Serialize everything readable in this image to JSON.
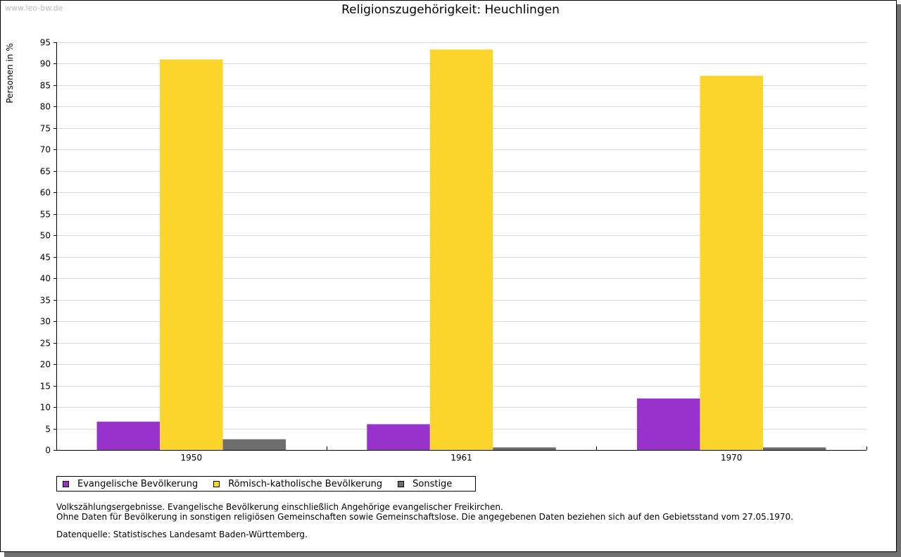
{
  "header": {
    "source_link": "www.leo-bw.de"
  },
  "chart_data": {
    "type": "bar",
    "title": "Religionszugehörigkeit: Heuchlingen",
    "ylabel": "Personen in %",
    "xlabel": "",
    "categories": [
      "1950",
      "1961",
      "1970"
    ],
    "ylim": [
      0,
      95
    ],
    "yticks": [
      0,
      5,
      10,
      15,
      20,
      25,
      30,
      35,
      40,
      45,
      50,
      55,
      60,
      65,
      70,
      75,
      80,
      85,
      90,
      95
    ],
    "grid": true,
    "legend_position": "bottom-left",
    "series": [
      {
        "name": "Evangelische Bevölkerung",
        "color": "#9932cc",
        "values": [
          6.6,
          6.0,
          12.0
        ]
      },
      {
        "name": "Römisch-katholische Bevölkerung",
        "color": "#fcd52c",
        "values": [
          91.0,
          93.3,
          87.2
        ]
      },
      {
        "name": "Sonstige",
        "color": "#6e6e6e",
        "values": [
          2.5,
          0.6,
          0.6
        ]
      }
    ]
  },
  "notes": {
    "line1": "Volkszählungsergebnisse. Evangelische Bevölkerung einschließlich Angehörige evangelischer Freikirchen.",
    "line2": "Ohne Daten für Bevölkerung in sonstigen religiösen Gemeinschaften sowie Gemeinschaftslose. Die angegebenen Daten beziehen sich auf den Gebietsstand vom 27.05.1970.",
    "source": "Datenquelle: Statistisches Landesamt Baden-Württemberg."
  }
}
